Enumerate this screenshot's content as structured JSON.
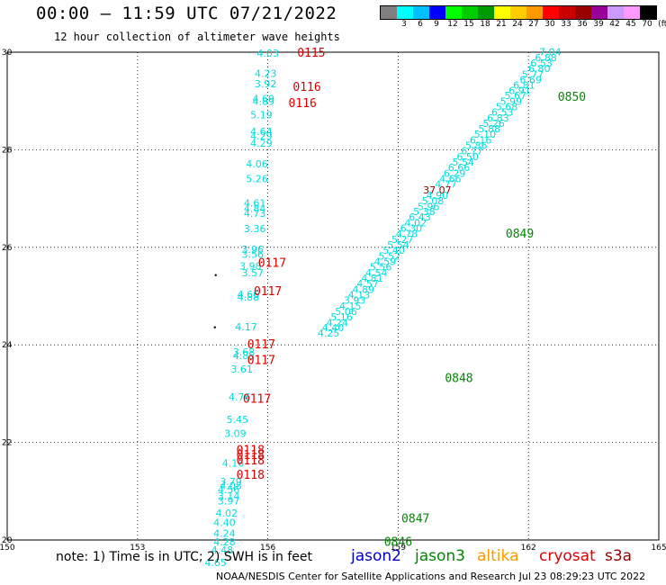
{
  "header": {
    "title": "00:00 – 11:59 UTC 07/21/2022",
    "subtitle": "12 hour collection of altimeter wave heights"
  },
  "legend": {
    "unit_label": "(ft)",
    "bins": [
      {
        "label": "",
        "color": "#808080"
      },
      {
        "label": "3",
        "color": "#00ffff"
      },
      {
        "label": "6",
        "color": "#00bfff"
      },
      {
        "label": "9",
        "color": "#0000ff"
      },
      {
        "label": "12",
        "color": "#00ff00"
      },
      {
        "label": "15",
        "color": "#00cc00"
      },
      {
        "label": "18",
        "color": "#009900"
      },
      {
        "label": "21",
        "color": "#ffff00"
      },
      {
        "label": "24",
        "color": "#ffcc00"
      },
      {
        "label": "27",
        "color": "#ff9900"
      },
      {
        "label": "30",
        "color": "#ff0000"
      },
      {
        "label": "33",
        "color": "#cc0000"
      },
      {
        "label": "36",
        "color": "#990000"
      },
      {
        "label": "39",
        "color": "#990099"
      },
      {
        "label": "42",
        "color": "#cc99ff"
      },
      {
        "label": "45",
        "color": "#ff99ff"
      },
      {
        "label": "70",
        "color": "#000000"
      }
    ]
  },
  "footer": {
    "note": "note: 1) Time is in UTC; 2) SWH is in feet",
    "credit": "NOAA/NESDIS Center for Satellite Applications and Research   Jul 23 08:29:23 UTC 2022",
    "missions": [
      {
        "name": "jason2",
        "color": "#0000cc"
      },
      {
        "name": "jason3",
        "color": "#008800"
      },
      {
        "name": "altika",
        "color": "#ff9900"
      },
      {
        "name": "cryosat",
        "color": "#dd0000"
      },
      {
        "name": "s3a",
        "color": "#990000"
      }
    ]
  },
  "chart_data": {
    "type": "scatter",
    "title": "00:00 – 11:59 UTC 07/21/2022",
    "subtitle": "12 hour collection of altimeter wave heights",
    "xlim": [
      150,
      165
    ],
    "ylim": [
      20,
      30
    ],
    "x_ticks": [
      "150",
      "153",
      "156",
      "159",
      "162",
      "165"
    ],
    "y_ticks": [
      "20",
      "22",
      "24",
      "26",
      "28",
      "30"
    ],
    "grid": true,
    "value_color": "#00dddd",
    "time_color": "#dd0000",
    "time_color_alt": "#008800",
    "high_color": "#990000",
    "points": [
      {
        "lon": 156.0,
        "lat": 29.98,
        "v": "4.03"
      },
      {
        "lon": 155.95,
        "lat": 29.57,
        "v": "4.23"
      },
      {
        "lon": 155.95,
        "lat": 29.35,
        "v": "3.92"
      },
      {
        "lon": 155.9,
        "lat": 29.05,
        "v": "4.69"
      },
      {
        "lon": 155.9,
        "lat": 28.99,
        "v": "4.89"
      },
      {
        "lon": 155.85,
        "lat": 28.72,
        "v": "5.19"
      },
      {
        "lon": 155.85,
        "lat": 28.38,
        "v": "4.64"
      },
      {
        "lon": 155.85,
        "lat": 28.28,
        "v": "4.29"
      },
      {
        "lon": 155.85,
        "lat": 28.14,
        "v": "4.29"
      },
      {
        "lon": 155.75,
        "lat": 27.71,
        "v": "4.06"
      },
      {
        "lon": 155.75,
        "lat": 27.41,
        "v": "5.26"
      },
      {
        "lon": 155.7,
        "lat": 26.91,
        "v": "4.61"
      },
      {
        "lon": 155.7,
        "lat": 26.8,
        "v": "4.84"
      },
      {
        "lon": 155.7,
        "lat": 26.7,
        "v": "4.73"
      },
      {
        "lon": 155.7,
        "lat": 26.38,
        "v": "3.36"
      },
      {
        "lon": 155.65,
        "lat": 25.96,
        "v": "3.96"
      },
      {
        "lon": 155.65,
        "lat": 25.86,
        "v": "3.56"
      },
      {
        "lon": 155.6,
        "lat": 25.62,
        "v": "3.98"
      },
      {
        "lon": 155.65,
        "lat": 25.48,
        "v": "3.57"
      },
      {
        "lon": 155.55,
        "lat": 25.04,
        "v": "4.66"
      },
      {
        "lon": 155.55,
        "lat": 24.98,
        "v": "4.88"
      },
      {
        "lon": 155.5,
        "lat": 24.37,
        "v": "4.17"
      },
      {
        "lon": 155.45,
        "lat": 23.86,
        "v": "3.68"
      },
      {
        "lon": 155.45,
        "lat": 23.78,
        "v": "4.85"
      },
      {
        "lon": 155.4,
        "lat": 23.51,
        "v": "3.61"
      },
      {
        "lon": 155.35,
        "lat": 22.93,
        "v": "4.76"
      },
      {
        "lon": 155.3,
        "lat": 22.47,
        "v": "5.45"
      },
      {
        "lon": 155.25,
        "lat": 22.19,
        "v": "3.09"
      },
      {
        "lon": 155.2,
        "lat": 21.58,
        "v": "4.16"
      },
      {
        "lon": 155.15,
        "lat": 21.2,
        "v": "3.79"
      },
      {
        "lon": 155.15,
        "lat": 21.12,
        "v": "4.08"
      },
      {
        "lon": 155.1,
        "lat": 21.03,
        "v": "4.56"
      },
      {
        "lon": 155.1,
        "lat": 20.9,
        "v": "3.14"
      },
      {
        "lon": 155.1,
        "lat": 20.8,
        "v": "3.97"
      },
      {
        "lon": 155.05,
        "lat": 20.55,
        "v": "4.02"
      },
      {
        "lon": 155.0,
        "lat": 20.36,
        "v": "4.40"
      },
      {
        "lon": 155.0,
        "lat": 20.14,
        "v": "4.24"
      },
      {
        "lon": 155.0,
        "lat": 19.96,
        "v": "4.28"
      },
      {
        "lon": 154.95,
        "lat": 19.8,
        "v": "4.48"
      },
      {
        "lon": 154.8,
        "lat": 19.54,
        "v": "4.65"
      },
      {
        "lon": 162.5,
        "lat": 30.01,
        "v": "7.04"
      },
      {
        "lon": 162.4,
        "lat": 29.89,
        "v": "6.88"
      },
      {
        "lon": 162.3,
        "lat": 29.78,
        "v": "6.53"
      },
      {
        "lon": 162.25,
        "lat": 29.67,
        "v": "6.80"
      },
      {
        "lon": 162.1,
        "lat": 29.55,
        "v": "5.77"
      },
      {
        "lon": 162.05,
        "lat": 29.44,
        "v": "6.69"
      },
      {
        "lon": 161.9,
        "lat": 29.33,
        "v": "6.81"
      },
      {
        "lon": 161.8,
        "lat": 29.22,
        "v": "6.91"
      },
      {
        "lon": 161.7,
        "lat": 29.11,
        "v": "5.67"
      },
      {
        "lon": 161.6,
        "lat": 28.99,
        "v": "5.99"
      },
      {
        "lon": 161.5,
        "lat": 28.88,
        "v": "5.68"
      },
      {
        "lon": 161.4,
        "lat": 28.77,
        "v": "6.53"
      },
      {
        "lon": 161.3,
        "lat": 28.65,
        "v": "6.83"
      },
      {
        "lon": 161.2,
        "lat": 28.54,
        "v": "5.26"
      },
      {
        "lon": 161.1,
        "lat": 28.43,
        "v": "5.88"
      },
      {
        "lon": 161.0,
        "lat": 28.32,
        "v": "5.10"
      },
      {
        "lon": 160.9,
        "lat": 28.2,
        "v": "6.16"
      },
      {
        "lon": 160.8,
        "lat": 28.09,
        "v": "5.86"
      },
      {
        "lon": 160.7,
        "lat": 27.98,
        "v": "6.77"
      },
      {
        "lon": 160.6,
        "lat": 27.86,
        "v": "6.50"
      },
      {
        "lon": 160.5,
        "lat": 27.75,
        "v": "5.54"
      },
      {
        "lon": 160.4,
        "lat": 27.64,
        "v": "6.66"
      },
      {
        "lon": 160.3,
        "lat": 27.52,
        "v": "6.29"
      },
      {
        "lon": 160.2,
        "lat": 27.41,
        "v": "4.66"
      },
      {
        "lon": 160.1,
        "lat": 27.3,
        "v": "4.77"
      },
      {
        "lon": 159.9,
        "lat": 27.18,
        "v": "37.07"
      },
      {
        "lon": 159.9,
        "lat": 27.07,
        "v": "4.90"
      },
      {
        "lon": 159.8,
        "lat": 26.96,
        "v": "5.08"
      },
      {
        "lon": 159.7,
        "lat": 26.84,
        "v": "5.96"
      },
      {
        "lon": 159.6,
        "lat": 26.73,
        "v": "5.38"
      },
      {
        "lon": 159.5,
        "lat": 26.62,
        "v": "6.43"
      },
      {
        "lon": 159.4,
        "lat": 26.5,
        "v": "4.02"
      },
      {
        "lon": 159.3,
        "lat": 26.39,
        "v": "6.30"
      },
      {
        "lon": 159.2,
        "lat": 26.28,
        "v": "4.78"
      },
      {
        "lon": 159.1,
        "lat": 26.16,
        "v": "5.27"
      },
      {
        "lon": 159.0,
        "lat": 26.05,
        "v": "5.54"
      },
      {
        "lon": 158.9,
        "lat": 25.94,
        "v": "5.40"
      },
      {
        "lon": 158.8,
        "lat": 25.82,
        "v": "5.52"
      },
      {
        "lon": 158.7,
        "lat": 25.71,
        "v": "4.59"
      },
      {
        "lon": 158.6,
        "lat": 25.6,
        "v": "5.56"
      },
      {
        "lon": 158.5,
        "lat": 25.48,
        "v": "4.54"
      },
      {
        "lon": 158.4,
        "lat": 25.37,
        "v": "4.81"
      },
      {
        "lon": 158.3,
        "lat": 25.26,
        "v": "4.57"
      },
      {
        "lon": 158.2,
        "lat": 25.14,
        "v": "4.89"
      },
      {
        "lon": 158.1,
        "lat": 25.03,
        "v": "4.13"
      },
      {
        "lon": 158.0,
        "lat": 24.92,
        "v": "3.93"
      },
      {
        "lon": 157.9,
        "lat": 24.8,
        "v": "4.15"
      },
      {
        "lon": 157.8,
        "lat": 24.69,
        "v": "5.06"
      },
      {
        "lon": 157.7,
        "lat": 24.58,
        "v": "5.16"
      },
      {
        "lon": 157.6,
        "lat": 24.46,
        "v": "4.24"
      },
      {
        "lon": 157.5,
        "lat": 24.35,
        "v": "4.40"
      },
      {
        "lon": 157.4,
        "lat": 24.24,
        "v": "4.25"
      }
    ],
    "time_labels": [
      {
        "lon": 157.0,
        "lat": 30.0,
        "t": "0115",
        "color_key": "red"
      },
      {
        "lon": 156.9,
        "lat": 29.3,
        "t": "0116",
        "color_key": "red"
      },
      {
        "lon": 156.8,
        "lat": 28.97,
        "t": "0116",
        "color_key": "red"
      },
      {
        "lon": 156.1,
        "lat": 25.69,
        "t": "0117",
        "color_key": "red"
      },
      {
        "lon": 156.0,
        "lat": 25.11,
        "t": "0117",
        "color_key": "red"
      },
      {
        "lon": 155.85,
        "lat": 24.02,
        "t": "0117",
        "color_key": "red"
      },
      {
        "lon": 155.85,
        "lat": 23.7,
        "t": "0117",
        "color_key": "red"
      },
      {
        "lon": 155.75,
        "lat": 22.91,
        "t": "0117",
        "color_key": "red"
      },
      {
        "lon": 155.6,
        "lat": 21.85,
        "t": "0118",
        "color_key": "red"
      },
      {
        "lon": 155.6,
        "lat": 21.75,
        "t": "0118",
        "color_key": "red"
      },
      {
        "lon": 155.6,
        "lat": 21.64,
        "t": "0118",
        "color_key": "red"
      },
      {
        "lon": 155.6,
        "lat": 21.35,
        "t": "0118",
        "color_key": "red"
      },
      {
        "lon": 163.0,
        "lat": 29.1,
        "t": "0850",
        "color_key": "green"
      },
      {
        "lon": 161.8,
        "lat": 26.29,
        "t": "0849",
        "color_key": "green"
      },
      {
        "lon": 160.4,
        "lat": 23.33,
        "t": "0848",
        "color_key": "green"
      },
      {
        "lon": 159.4,
        "lat": 20.45,
        "t": "0847",
        "color_key": "green"
      },
      {
        "lon": 159.0,
        "lat": 19.97,
        "t": "0846",
        "color_key": "green"
      }
    ],
    "markers": [
      {
        "lon": 154.8,
        "lat": 25.43
      },
      {
        "lon": 154.78,
        "lat": 24.36
      }
    ]
  }
}
